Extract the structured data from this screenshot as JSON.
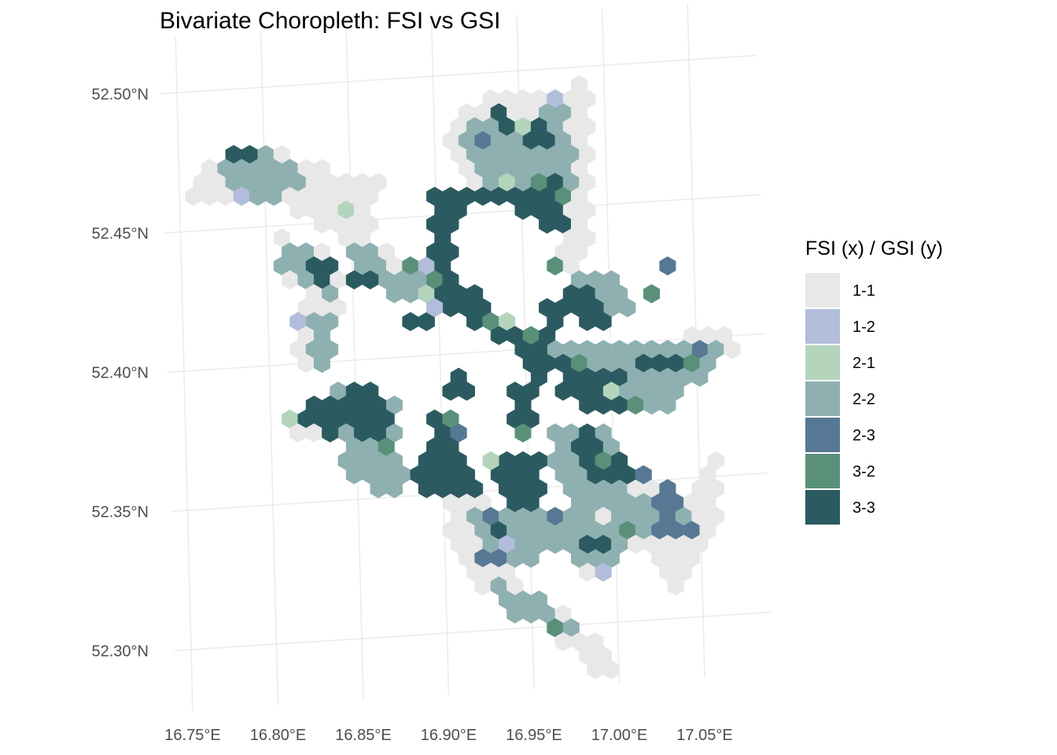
{
  "title": "Bivariate Choropleth: FSI vs GSI",
  "legend": {
    "title": "FSI (x) / GSI (y)",
    "items": [
      {
        "label": "1-1",
        "color": "#e8e8e8"
      },
      {
        "label": "1-2",
        "color": "#b1bddb"
      },
      {
        "label": "2-1",
        "color": "#b4d4bc"
      },
      {
        "label": "2-2",
        "color": "#8fb0b0"
      },
      {
        "label": "2-3",
        "color": "#577894"
      },
      {
        "label": "3-2",
        "color": "#5a907a"
      },
      {
        "label": "3-3",
        "color": "#2b5b60"
      }
    ]
  },
  "chart_data": {
    "type": "hexbin-bivariate-map",
    "x_ticks": [
      {
        "value": 16.75,
        "label": "16.75°E"
      },
      {
        "value": 16.8,
        "label": "16.80°E"
      },
      {
        "value": 16.85,
        "label": "16.85°E"
      },
      {
        "value": 16.9,
        "label": "16.90°E"
      },
      {
        "value": 16.95,
        "label": "16.95°E"
      },
      {
        "value": 17.0,
        "label": "17.00°E"
      },
      {
        "value": 17.05,
        "label": "17.05°E"
      }
    ],
    "y_ticks": [
      {
        "value": 52.3,
        "label": "52.30°N"
      },
      {
        "value": 52.35,
        "label": "52.35°N"
      },
      {
        "value": 52.4,
        "label": "52.40°N"
      },
      {
        "value": 52.45,
        "label": "52.45°N"
      },
      {
        "value": 52.5,
        "label": "52.50°N"
      }
    ],
    "xlim": [
      16.74,
      17.09
    ],
    "ylim": [
      52.28,
      52.51
    ],
    "grid": true,
    "legend_position": "right"
  }
}
